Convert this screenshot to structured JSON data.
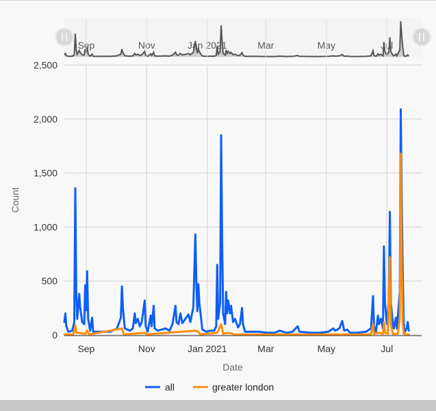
{
  "colors": {
    "all": "#0d5ff5",
    "greater_london": "#ff8c0a",
    "navigator_line": "#555555",
    "navigator_fill": "#aaaaaa",
    "grid": "#d0d0d0"
  },
  "chart_data": {
    "type": "line",
    "xlabel": "Date",
    "ylabel": "Count",
    "xlim": [
      "2020-08-10",
      "2021-08-05"
    ],
    "ylim": [
      0,
      2500
    ],
    "yticks": [
      "0",
      "500",
      "1,000",
      "1,500",
      "2,000",
      "2,500"
    ],
    "yticks_values": [
      0,
      500,
      1000,
      1500,
      2000,
      2500
    ],
    "xticks": [
      "Sep",
      "Nov",
      "Jan 2021",
      "Mar",
      "May",
      "Jul"
    ],
    "xticks_dates": [
      "2020-09-01",
      "2020-11-01",
      "2021-01-01",
      "2021-03-01",
      "2021-05-01",
      "2021-07-01"
    ],
    "grid": true,
    "legend_position": "bottom-center",
    "navigator": true,
    "series": [
      {
        "name": "all",
        "points": [
          [
            "2020-08-10",
            120
          ],
          [
            "2020-08-11",
            200
          ],
          [
            "2020-08-12",
            80
          ],
          [
            "2020-08-14",
            30
          ],
          [
            "2020-08-18",
            40
          ],
          [
            "2020-08-20",
            120
          ],
          [
            "2020-08-21",
            1360
          ],
          [
            "2020-08-22",
            400
          ],
          [
            "2020-08-23",
            150
          ],
          [
            "2020-08-25",
            380
          ],
          [
            "2020-08-26",
            250
          ],
          [
            "2020-08-28",
            120
          ],
          [
            "2020-08-30",
            100
          ],
          [
            "2020-08-31",
            460
          ],
          [
            "2020-09-01",
            230
          ],
          [
            "2020-09-02",
            590
          ],
          [
            "2020-09-03",
            150
          ],
          [
            "2020-09-05",
            40
          ],
          [
            "2020-09-07",
            160
          ],
          [
            "2020-09-08",
            30
          ],
          [
            "2020-09-15",
            30
          ],
          [
            "2020-09-25",
            30
          ],
          [
            "2020-10-02",
            60
          ],
          [
            "2020-10-06",
            160
          ],
          [
            "2020-10-07",
            450
          ],
          [
            "2020-10-08",
            250
          ],
          [
            "2020-10-10",
            60
          ],
          [
            "2020-10-15",
            40
          ],
          [
            "2020-10-18",
            60
          ],
          [
            "2020-10-20",
            200
          ],
          [
            "2020-10-21",
            110
          ],
          [
            "2020-10-23",
            150
          ],
          [
            "2020-10-25",
            80
          ],
          [
            "2020-10-27",
            120
          ],
          [
            "2020-10-30",
            320
          ],
          [
            "2020-10-31",
            80
          ],
          [
            "2020-11-02",
            30
          ],
          [
            "2020-11-05",
            180
          ],
          [
            "2020-11-06",
            80
          ],
          [
            "2020-11-08",
            270
          ],
          [
            "2020-11-09",
            60
          ],
          [
            "2020-11-12",
            40
          ],
          [
            "2020-11-20",
            60
          ],
          [
            "2020-11-24",
            40
          ],
          [
            "2020-11-27",
            100
          ],
          [
            "2020-11-30",
            270
          ],
          [
            "2020-12-01",
            120
          ],
          [
            "2020-12-03",
            100
          ],
          [
            "2020-12-05",
            200
          ],
          [
            "2020-12-07",
            110
          ],
          [
            "2020-12-10",
            150
          ],
          [
            "2020-12-13",
            190
          ],
          [
            "2020-12-15",
            120
          ],
          [
            "2020-12-18",
            260
          ],
          [
            "2020-12-20",
            930
          ],
          [
            "2020-12-21",
            480
          ],
          [
            "2020-12-22",
            220
          ],
          [
            "2020-12-23",
            470
          ],
          [
            "2020-12-24",
            300
          ],
          [
            "2020-12-27",
            50
          ],
          [
            "2020-12-31",
            30
          ],
          [
            "2021-01-04",
            40
          ],
          [
            "2021-01-08",
            40
          ],
          [
            "2021-01-10",
            80
          ],
          [
            "2021-01-11",
            650
          ],
          [
            "2021-01-12",
            150
          ],
          [
            "2021-01-14",
            300
          ],
          [
            "2021-01-15",
            1850
          ],
          [
            "2021-01-16",
            900
          ],
          [
            "2021-01-17",
            200
          ],
          [
            "2021-01-19",
            100
          ],
          [
            "2021-01-20",
            400
          ],
          [
            "2021-01-21",
            200
          ],
          [
            "2021-01-22",
            320
          ],
          [
            "2021-01-24",
            200
          ],
          [
            "2021-01-25",
            270
          ],
          [
            "2021-01-27",
            120
          ],
          [
            "2021-01-29",
            150
          ],
          [
            "2021-02-01",
            70
          ],
          [
            "2021-02-03",
            100
          ],
          [
            "2021-02-05",
            250
          ],
          [
            "2021-02-06",
            100
          ],
          [
            "2021-02-08",
            30
          ],
          [
            "2021-02-14",
            30
          ],
          [
            "2021-02-22",
            30
          ],
          [
            "2021-03-02",
            20
          ],
          [
            "2021-03-10",
            20
          ],
          [
            "2021-03-15",
            40
          ],
          [
            "2021-03-22",
            20
          ],
          [
            "2021-03-28",
            30
          ],
          [
            "2021-04-02",
            80
          ],
          [
            "2021-04-04",
            30
          ],
          [
            "2021-04-15",
            20
          ],
          [
            "2021-04-25",
            20
          ],
          [
            "2021-05-03",
            30
          ],
          [
            "2021-05-08",
            60
          ],
          [
            "2021-05-10",
            40
          ],
          [
            "2021-05-14",
            60
          ],
          [
            "2021-05-17",
            130
          ],
          [
            "2021-05-19",
            40
          ],
          [
            "2021-05-22",
            50
          ],
          [
            "2021-05-25",
            20
          ],
          [
            "2021-06-01",
            20
          ],
          [
            "2021-06-10",
            30
          ],
          [
            "2021-06-15",
            60
          ],
          [
            "2021-06-17",
            360
          ],
          [
            "2021-06-18",
            80
          ],
          [
            "2021-06-20",
            30
          ],
          [
            "2021-06-22",
            180
          ],
          [
            "2021-06-23",
            100
          ],
          [
            "2021-06-25",
            150
          ],
          [
            "2021-06-27",
            60
          ],
          [
            "2021-06-28",
            820
          ],
          [
            "2021-06-29",
            300
          ],
          [
            "2021-07-01",
            100
          ],
          [
            "2021-07-03",
            300
          ],
          [
            "2021-07-04",
            1140
          ],
          [
            "2021-07-05",
            300
          ],
          [
            "2021-07-07",
            100
          ],
          [
            "2021-07-08",
            60
          ],
          [
            "2021-07-10",
            160
          ],
          [
            "2021-07-11",
            60
          ],
          [
            "2021-07-14",
            400
          ],
          [
            "2021-07-15",
            2090
          ],
          [
            "2021-07-16",
            1200
          ],
          [
            "2021-07-17",
            530
          ],
          [
            "2021-07-18",
            100
          ],
          [
            "2021-07-19",
            30
          ],
          [
            "2021-07-21",
            60
          ],
          [
            "2021-07-22",
            120
          ],
          [
            "2021-07-23",
            40
          ]
        ]
      },
      {
        "name": "greater london",
        "points": [
          [
            "2020-08-10",
            5
          ],
          [
            "2020-08-19",
            5
          ],
          [
            "2020-08-21",
            90
          ],
          [
            "2020-08-22",
            20
          ],
          [
            "2020-08-25",
            20
          ],
          [
            "2020-08-31",
            10
          ],
          [
            "2020-09-02",
            40
          ],
          [
            "2020-09-04",
            5
          ],
          [
            "2020-10-07",
            60
          ],
          [
            "2020-10-09",
            5
          ],
          [
            "2020-10-30",
            20
          ],
          [
            "2020-11-01",
            5
          ],
          [
            "2020-12-20",
            40
          ],
          [
            "2020-12-23",
            30
          ],
          [
            "2020-12-25",
            5
          ],
          [
            "2021-01-11",
            20
          ],
          [
            "2021-01-15",
            100
          ],
          [
            "2021-01-17",
            10
          ],
          [
            "2021-01-22",
            20
          ],
          [
            "2021-01-25",
            15
          ],
          [
            "2021-01-28",
            5
          ],
          [
            "2021-04-02",
            5
          ],
          [
            "2021-06-15",
            5
          ],
          [
            "2021-06-17",
            100
          ],
          [
            "2021-06-18",
            10
          ],
          [
            "2021-06-23",
            20
          ],
          [
            "2021-06-27",
            10
          ],
          [
            "2021-06-28",
            120
          ],
          [
            "2021-06-29",
            20
          ],
          [
            "2021-07-02",
            10
          ],
          [
            "2021-07-04",
            720
          ],
          [
            "2021-07-05",
            100
          ],
          [
            "2021-07-07",
            10
          ],
          [
            "2021-07-12",
            10
          ],
          [
            "2021-07-14",
            150
          ],
          [
            "2021-07-15",
            1680
          ],
          [
            "2021-07-16",
            600
          ],
          [
            "2021-07-17",
            100
          ],
          [
            "2021-07-18",
            10
          ],
          [
            "2021-07-23",
            5
          ]
        ]
      }
    ]
  }
}
